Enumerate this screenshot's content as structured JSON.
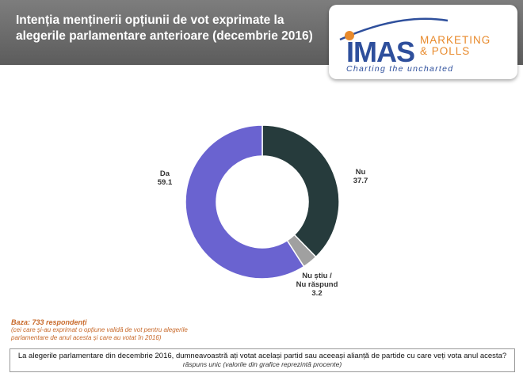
{
  "header": {
    "title_line1": "Intenția menținerii opțiunii de vot exprimate la",
    "title_line2": "alegerile parlamentare anterioare (decembrie 2016)"
  },
  "logo": {
    "brand": "IMAS",
    "line1": "MARKETING",
    "line2": "& POLLS",
    "tagline": "Charting the uncharted",
    "colors": {
      "blue": "#2e4f9c",
      "orange": "#e88a2c"
    }
  },
  "chart_data": {
    "type": "pie",
    "variant": "donut",
    "title": "",
    "categories": [
      "Nu",
      "Nu știu / Nu răspund",
      "Da"
    ],
    "values": [
      37.7,
      3.2,
      59.1
    ],
    "slices": [
      {
        "label_lines": [
          "Nu"
        ],
        "value": 37.7,
        "value_text": "37.7",
        "color": "#263b3c"
      },
      {
        "label_lines": [
          "Nu știu /",
          "Nu răspund"
        ],
        "value": 3.2,
        "value_text": "3.2",
        "color": "#a0a0a0"
      },
      {
        "label_lines": [
          "Da"
        ],
        "value": 59.1,
        "value_text": "59.1",
        "color": "#6a63d0"
      }
    ],
    "start": "top, clockwise",
    "legend": "none (direct labels)"
  },
  "base": {
    "title": "Baza: 733 respondenți",
    "note_line1": "(cei care și-au exprimat o opțiune validă de vot pentru alegerile",
    "note_line2": "parlamentare de anul acesta și care au votat în 2016)"
  },
  "question": {
    "text": "La alegerile parlamentare din decembrie 2016, dumneavoastră ați votat același partid sau aceeași alianță de partide cu care veți vota anul acesta?",
    "note": "răspuns unic (valorile din grafice reprezintă procente)"
  }
}
